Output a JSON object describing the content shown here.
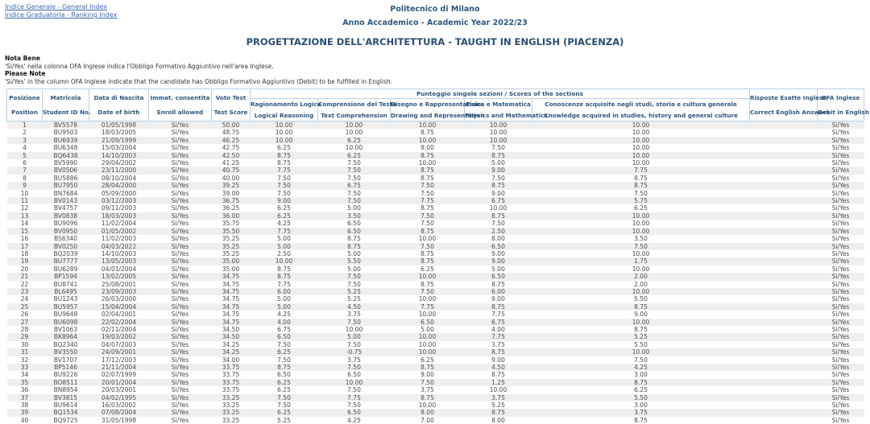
{
  "links": {
    "general_index": "Indice Generale - General Index",
    "ranking_index": "Indice Graduatoria - Ranking Index"
  },
  "header": {
    "organization": "Politecnico di Milano",
    "academic_year": "Anno Accademico - Academic Year 2022/23",
    "title": "PROGETTAZIONE DELL'ARCHITETTURA - TAUGHT IN ENGLISH (PIACENZA)"
  },
  "notes": {
    "nota_bene_label": "Nota Bene",
    "nota_bene_text": "'Si/Yes' nella colonna OFA Inglese indica l'Obbligo Formativo Aggiuntivo nell'area Inglese.",
    "please_note_label": "Please Note",
    "please_note_text": "'Si/Yes' in the column OFA Inglese indicate that the candidate has Obbligo Formativo Aggiuntivo (Debit) to be fulfilled in English."
  },
  "table": {
    "group_header": "Punteggio singole sezioni / Scores of the sections",
    "columns": [
      {
        "it": "Posizione",
        "en": "Position"
      },
      {
        "it": "Matricola",
        "en": "Student ID No."
      },
      {
        "it": "Data di Nascita",
        "en": "Date of birth"
      },
      {
        "it": "Immat. consentita",
        "en": "Enroll allowed"
      },
      {
        "it": "Voto Test",
        "en": "Test Score"
      },
      {
        "it": "Ragionamento Logico",
        "en": "Logical Reasoning"
      },
      {
        "it": "Comprensione del Testo",
        "en": "Text Comprehension"
      },
      {
        "it": "Disegno e Rappresentazione",
        "en": "Drawing and Representation"
      },
      {
        "it": "Fisica e Matematica",
        "en": "Physics and Mathematics"
      },
      {
        "it": "Conoscenze acquisite negli studi, storia e cultura generale",
        "en": "Knowledge acquired in studies, history and general culture"
      },
      {
        "it": "Risposte Esatte Inglese",
        "en": "Correct English Answers"
      },
      {
        "it": "OFA Inglese",
        "en": "Debit in English"
      }
    ],
    "row_keys": [
      "position",
      "student_id",
      "date_of_birth",
      "enroll_allowed",
      "test_score",
      "logical_reasoning",
      "text_comprehension",
      "drawing_representation",
      "physics_mathematics",
      "knowledge_general_culture",
      "correct_english_answers",
      "ofa_english"
    ],
    "rows": [
      [
        "1",
        "BV5578",
        "01/05/1998",
        "Si/Yes",
        "50.00",
        "10.00",
        "10.00",
        "10.00",
        "10.00",
        "10.00",
        "",
        "Si/Yes"
      ],
      [
        "2",
        "BU9503",
        "18/03/2005",
        "Si/Yes",
        "48.75",
        "10.00",
        "10.00",
        "8.75",
        "10.00",
        "10.00",
        "",
        "Si/Yes"
      ],
      [
        "3",
        "BU6939",
        "21/09/1999",
        "Si/Yes",
        "46.25",
        "10.00",
        "6.25",
        "10.00",
        "10.00",
        "10.00",
        "",
        "Si/Yes"
      ],
      [
        "4",
        "BU6348",
        "15/03/2004",
        "Si/Yes",
        "42.75",
        "6.25",
        "10.00",
        "9.00",
        "7.50",
        "10.00",
        "",
        "Si/Yes"
      ],
      [
        "5",
        "BQ6438",
        "14/10/2003",
        "Si/Yes",
        "42.50",
        "8.75",
        "6.25",
        "8.75",
        "8.75",
        "10.00",
        "",
        "Si/Yes"
      ],
      [
        "6",
        "BV5990",
        "29/04/2002",
        "Si/Yes",
        "41.25",
        "8.75",
        "7.50",
        "10.00",
        "5.00",
        "10.00",
        "",
        "Si/Yes"
      ],
      [
        "7",
        "BV0506",
        "23/11/2000",
        "Si/Yes",
        "40.75",
        "7.75",
        "7.50",
        "8.75",
        "9.00",
        "7.75",
        "",
        "Si/Yes"
      ],
      [
        "8",
        "BU5886",
        "08/10/2004",
        "Si/Yes",
        "40.00",
        "7.50",
        "7.50",
        "8.75",
        "7.50",
        "8.75",
        "",
        "Si/Yes"
      ],
      [
        "9",
        "BU7950",
        "28/04/2000",
        "Si/Yes",
        "39.25",
        "7.50",
        "6.75",
        "7.50",
        "8.75",
        "8.75",
        "",
        "Si/Yes"
      ],
      [
        "10",
        "BN7684",
        "05/09/2000",
        "Si/Yes",
        "39.00",
        "7.50",
        "7.50",
        "7.50",
        "9.00",
        "7.50",
        "",
        "Si/Yes"
      ],
      [
        "11",
        "BV0143",
        "03/12/2003",
        "Si/Yes",
        "36.75",
        "9.00",
        "7.50",
        "7.75",
        "6.75",
        "5.75",
        "",
        "Si/Yes"
      ],
      [
        "12",
        "BV4757",
        "09/11/2003",
        "Si/Yes",
        "36.25",
        "6.25",
        "5.00",
        "8.75",
        "10.00",
        "6.25",
        "",
        "Si/Yes"
      ],
      [
        "13",
        "BV0838",
        "18/03/2003",
        "Si/Yes",
        "36.00",
        "6.25",
        "3.50",
        "7.50",
        "8.75",
        "10.00",
        "",
        "Si/Yes"
      ],
      [
        "14",
        "BU9096",
        "11/02/2004",
        "Si/Yes",
        "35.75",
        "4.25",
        "6.50",
        "7.50",
        "7.50",
        "10.00",
        "",
        "Si/Yes"
      ],
      [
        "15",
        "BV0950",
        "01/05/2002",
        "Si/Yes",
        "35.50",
        "7.75",
        "6.50",
        "8.75",
        "2.50",
        "10.00",
        "",
        "Si/Yes"
      ],
      [
        "16",
        "BS6340",
        "11/02/2003",
        "Si/Yes",
        "35.25",
        "5.00",
        "8.75",
        "10.00",
        "8.00",
        "3.50",
        "",
        "Si/Yes"
      ],
      [
        "17",
        "BV0250",
        "04/03/2022",
        "Si/Yes",
        "35.25",
        "5.00",
        "8.75",
        "7.50",
        "6.50",
        "7.50",
        "",
        "Si/Yes"
      ],
      [
        "18",
        "BQ2039",
        "14/10/2003",
        "Si/Yes",
        "35.25",
        "2.50",
        "5.00",
        "8.75",
        "9.00",
        "10.00",
        "",
        "Si/Yes"
      ],
      [
        "19",
        "BU7777",
        "13/05/2003",
        "Si/Yes",
        "35.00",
        "10.00",
        "5.50",
        "8.75",
        "9.00",
        "1.75",
        "",
        "Si/Yes"
      ],
      [
        "20",
        "BU6289",
        "04/01/2004",
        "Si/Yes",
        "35.00",
        "8.75",
        "5.00",
        "6.25",
        "5.00",
        "10.00",
        "",
        "Si/Yes"
      ],
      [
        "21",
        "BP1594",
        "13/02/2005",
        "Si/Yes",
        "34.75",
        "8.75",
        "7.50",
        "10.00",
        "6.50",
        "2.00",
        "",
        "Si/Yes"
      ],
      [
        "22",
        "BU8741",
        "25/08/2001",
        "Si/Yes",
        "34.75",
        "7.75",
        "7.50",
        "8.75",
        "8.75",
        "2.00",
        "",
        "Si/Yes"
      ],
      [
        "23",
        "BL6495",
        "23/09/2003",
        "Si/Yes",
        "34.75",
        "6.00",
        "5.25",
        "7.50",
        "6.00",
        "10.00",
        "",
        "Si/Yes"
      ],
      [
        "24",
        "BU1243",
        "26/03/2000",
        "Si/Yes",
        "34.75",
        "5.00",
        "5.25",
        "10.00",
        "9.00",
        "5.50",
        "",
        "Si/Yes"
      ],
      [
        "25",
        "BU5957",
        "15/04/2004",
        "Si/Yes",
        "34.75",
        "5.00",
        "4.50",
        "7.75",
        "8.75",
        "8.75",
        "",
        "Si/Yes"
      ],
      [
        "26",
        "BU9648",
        "02/04/2001",
        "Si/Yes",
        "34.75",
        "4.25",
        "3.75",
        "10.00",
        "7.75",
        "9.00",
        "",
        "Si/Yes"
      ],
      [
        "27",
        "BU6098",
        "22/02/2004",
        "Si/Yes",
        "34.75",
        "4.00",
        "7.50",
        "6.50",
        "6.75",
        "10.00",
        "",
        "Si/Yes"
      ],
      [
        "28",
        "BV1063",
        "02/11/2004",
        "Si/Yes",
        "34.50",
        "6.75",
        "10.00",
        "5.00",
        "4.00",
        "8.75",
        "",
        "Si/Yes"
      ],
      [
        "29",
        "BK8964",
        "19/03/2002",
        "Si/Yes",
        "34.50",
        "6.50",
        "5.00",
        "10.00",
        "7.75",
        "5.25",
        "",
        "Si/Yes"
      ],
      [
        "30",
        "BQ2340",
        "04/07/2003",
        "Si/Yes",
        "34.25",
        "7.50",
        "7.50",
        "10.00",
        "3.75",
        "5.50",
        "",
        "Si/Yes"
      ],
      [
        "31",
        "BV3550",
        "24/09/2001",
        "Si/Yes",
        "34.25",
        "6.25",
        "-0.75",
        "10.00",
        "8.75",
        "10.00",
        "",
        "Si/Yes"
      ],
      [
        "32",
        "BV1707",
        "17/12/2003",
        "Si/Yes",
        "34.00",
        "7.50",
        "3.75",
        "6.25",
        "9.00",
        "7.50",
        "",
        "Si/Yes"
      ],
      [
        "33",
        "BP5146",
        "21/11/2004",
        "Si/Yes",
        "33.75",
        "8.75",
        "7.50",
        "8.75",
        "4.50",
        "4.25",
        "",
        "Si/Yes"
      ],
      [
        "34",
        "BU9226",
        "02/07/1999",
        "Si/Yes",
        "33.75",
        "6.50",
        "6.50",
        "9.00",
        "8.75",
        "3.00",
        "",
        "Si/Yes"
      ],
      [
        "35",
        "BO8511",
        "20/01/2004",
        "Si/Yes",
        "33.75",
        "6.25",
        "10.00",
        "7.50",
        "1.25",
        "8.75",
        "",
        "Si/Yes"
      ],
      [
        "36",
        "BN8954",
        "20/03/2001",
        "Si/Yes",
        "33.75",
        "6.25",
        "7.50",
        "3.75",
        "10.00",
        "6.25",
        "",
        "Si/Yes"
      ],
      [
        "37",
        "BV3815",
        "04/02/1995",
        "Si/Yes",
        "33.25",
        "7.50",
        "7.75",
        "8.75",
        "3.75",
        "5.50",
        "",
        "Si/Yes"
      ],
      [
        "38",
        "BU9614",
        "16/03/2002",
        "Si/Yes",
        "33.25",
        "7.50",
        "7.50",
        "10.00",
        "5.25",
        "3.00",
        "",
        "Si/Yes"
      ],
      [
        "39",
        "BQ1534",
        "07/08/2004",
        "Si/Yes",
        "33.25",
        "6.25",
        "6.50",
        "8.00",
        "8.75",
        "3.75",
        "",
        "Si/Yes"
      ],
      [
        "40",
        "BQ9725",
        "31/05/1998",
        "Si/Yes",
        "33.25",
        "5.25",
        "4.25",
        "7.00",
        "8.00",
        "8.75",
        "",
        "Si/Yes"
      ]
    ]
  },
  "colors": {
    "header_text": "#2d567e",
    "link": "#3a67ad",
    "border": "#b9cfe0",
    "stripe": "#efefef",
    "body_text": "#4b4b4b"
  }
}
